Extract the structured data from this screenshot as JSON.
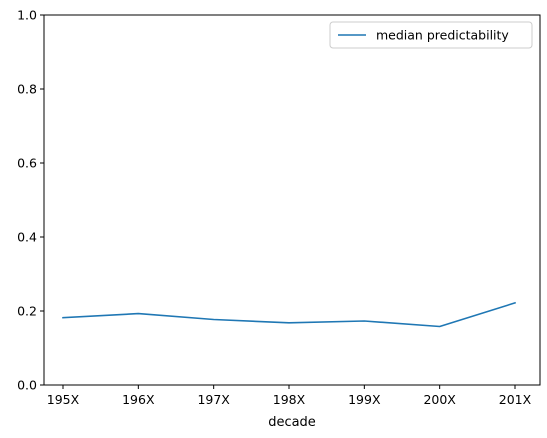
{
  "chart_data": {
    "type": "line",
    "title": "",
    "xlabel": "decade",
    "ylabel": "",
    "categories": [
      "195X",
      "196X",
      "197X",
      "198X",
      "199X",
      "200X",
      "201X"
    ],
    "series": [
      {
        "name": "median predictability",
        "values": [
          0.182,
          0.193,
          0.177,
          0.168,
          0.173,
          0.158,
          0.222
        ],
        "color": "#1f77b4"
      }
    ],
    "ylim": [
      0,
      1.0
    ],
    "yticks": [
      "0.0",
      "0.2",
      "0.4",
      "0.6",
      "0.8",
      "1.0"
    ],
    "grid": false,
    "legend": "top-right"
  }
}
